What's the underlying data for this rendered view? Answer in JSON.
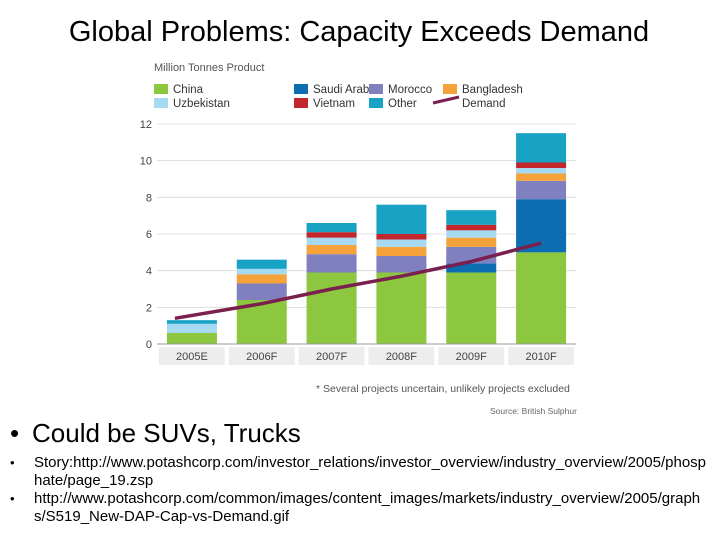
{
  "slide": {
    "title": "Global Problems: Capacity Exceeds Demand",
    "bullets": [
      {
        "text": "Could be SUVs, Trucks"
      }
    ],
    "sub_bullets": [
      {
        "text": "Story:http://www.potashcorp.com/investor_relations/investor_overview/industry_overview/2005/phosphate/page_19.zsp"
      },
      {
        "text": "http://www.potashcorp.com/common/images/content_images/markets/industry_overview/2005/graphs/S519_New-DAP-Cap-vs-Demand.gif"
      }
    ]
  },
  "chart_data": {
    "type": "bar",
    "stacked": true,
    "title": "Million Tonnes Product",
    "categories": [
      "2005E",
      "2006F",
      "2007F",
      "2008F",
      "2009F",
      "2010F"
    ],
    "ylim": [
      0,
      12
    ],
    "yticks": [
      0,
      2,
      4,
      6,
      8,
      10,
      12
    ],
    "series": [
      {
        "name": "China",
        "color": "#8dc63f",
        "values": [
          0.6,
          2.4,
          3.9,
          3.9,
          3.9,
          5.0
        ]
      },
      {
        "name": "Saudi Arabia",
        "color": "#0d6db1",
        "values": [
          0,
          0,
          0,
          0,
          0.5,
          2.9
        ]
      },
      {
        "name": "Morocco",
        "color": "#8080c0",
        "values": [
          0,
          0.9,
          1.0,
          0.9,
          0.9,
          1.0
        ]
      },
      {
        "name": "Bangladesh",
        "color": "#f5a23a",
        "values": [
          0,
          0.5,
          0.5,
          0.5,
          0.5,
          0.4
        ]
      },
      {
        "name": "Uzbekistan",
        "color": "#a6d9f2",
        "values": [
          0.5,
          0.3,
          0.4,
          0.4,
          0.4,
          0.3
        ]
      },
      {
        "name": "Vietnam",
        "color": "#c1272d",
        "values": [
          0,
          0,
          0.3,
          0.3,
          0.3,
          0.3
        ]
      },
      {
        "name": "Other",
        "color": "#18a3c4",
        "values": [
          0.2,
          0.5,
          0.5,
          1.6,
          0.8,
          1.6
        ]
      }
    ],
    "demand": {
      "name": "Demand",
      "color": "#7b1f4e",
      "values": [
        1.4,
        2.2,
        3.0,
        3.7,
        4.5,
        5.5
      ]
    },
    "legend": [
      {
        "name": "China",
        "color": "#8dc63f",
        "kind": "box"
      },
      {
        "name": "Saudi Arabia",
        "color": "#0d6db1",
        "kind": "box"
      },
      {
        "name": "Morocco",
        "color": "#8080c0",
        "kind": "box"
      },
      {
        "name": "Bangladesh",
        "color": "#f5a23a",
        "kind": "box"
      },
      {
        "name": "Uzbekistan",
        "color": "#a6d9f2",
        "kind": "box"
      },
      {
        "name": "Vietnam",
        "color": "#c1272d",
        "kind": "box"
      },
      {
        "name": "Other",
        "color": "#18a3c4",
        "kind": "box"
      },
      {
        "name": "Demand",
        "color": "#7b1f4e",
        "kind": "line"
      }
    ],
    "legend_position": "top-left",
    "footnote": "* Several projects uncertain, unlikely projects excluded",
    "source": "Source: British Sulphur"
  }
}
